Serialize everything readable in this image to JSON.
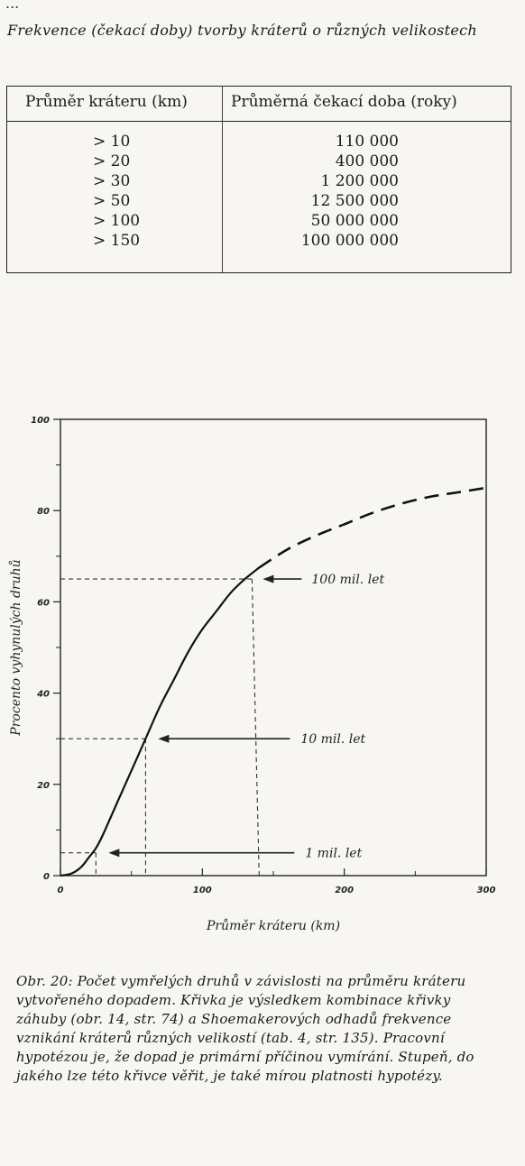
{
  "top_mark": "...",
  "table": {
    "caption": "Frekvence (čekací doby) tvorby kráterů o různých velikostech",
    "headers": [
      "Průměr kráteru (km)",
      "Průměrná čekací doba (roky)"
    ],
    "rows": [
      [
        "> 10",
        "110 000"
      ],
      [
        "> 20",
        "400 000"
      ],
      [
        "> 30",
        "1 200 000"
      ],
      [
        "> 50",
        "12 500 000"
      ],
      [
        "> 100",
        "50 000 000"
      ],
      [
        "> 150",
        "100 000 000"
      ]
    ]
  },
  "chart_data": {
    "type": "line",
    "title": "",
    "xlabel": "Průměr kráteru (km)",
    "ylabel": "Procento vyhynulých druhů",
    "xlim": [
      0,
      300
    ],
    "ylim": [
      0,
      100
    ],
    "xticks": [
      "0",
      "100",
      "200",
      "300"
    ],
    "yticks": [
      "0",
      "20",
      "40",
      "60",
      "80",
      "100"
    ],
    "grid": false,
    "series": [
      {
        "style": "solid",
        "x": [
          0,
          8,
          15,
          20,
          25,
          30,
          40,
          50,
          60,
          70,
          80,
          90,
          100,
          110,
          120,
          130,
          140
        ],
        "y": [
          0,
          0.5,
          2,
          4,
          6,
          9,
          16,
          23,
          30,
          37,
          43,
          49,
          54,
          58,
          62,
          65,
          67.5
        ]
      },
      {
        "style": "dashed",
        "x": [
          140,
          160,
          180,
          200,
          220,
          240,
          260,
          280,
          300
        ],
        "y": [
          67.5,
          71.5,
          74.5,
          77,
          79.5,
          81.5,
          83,
          84,
          85
        ]
      }
    ],
    "annotations": [
      {
        "text": "100 mil. let",
        "x": 135,
        "y": 65
      },
      {
        "text": "10 mil. let",
        "x": 60,
        "y": 30
      },
      {
        "text": "1 mil. let",
        "x": 25,
        "y": 5
      }
    ]
  },
  "figure_caption": "Obr. 20: Počet vymřelých druhů v závislosti na průměru kráteru vytvořeného dopadem. Křivka je výsledkem kombinace křivky záhuby (obr. 14, str. 74) a Shoemakerových odhadů frekvence vznikání kráterů různých velikostí (tab. 4, str. 135). Pracovní hypotézou je, že dopad je primární příčinou vymírání. Stupeň, do jakého lze této křivce věřit, je také mírou platnosti hypotézy."
}
